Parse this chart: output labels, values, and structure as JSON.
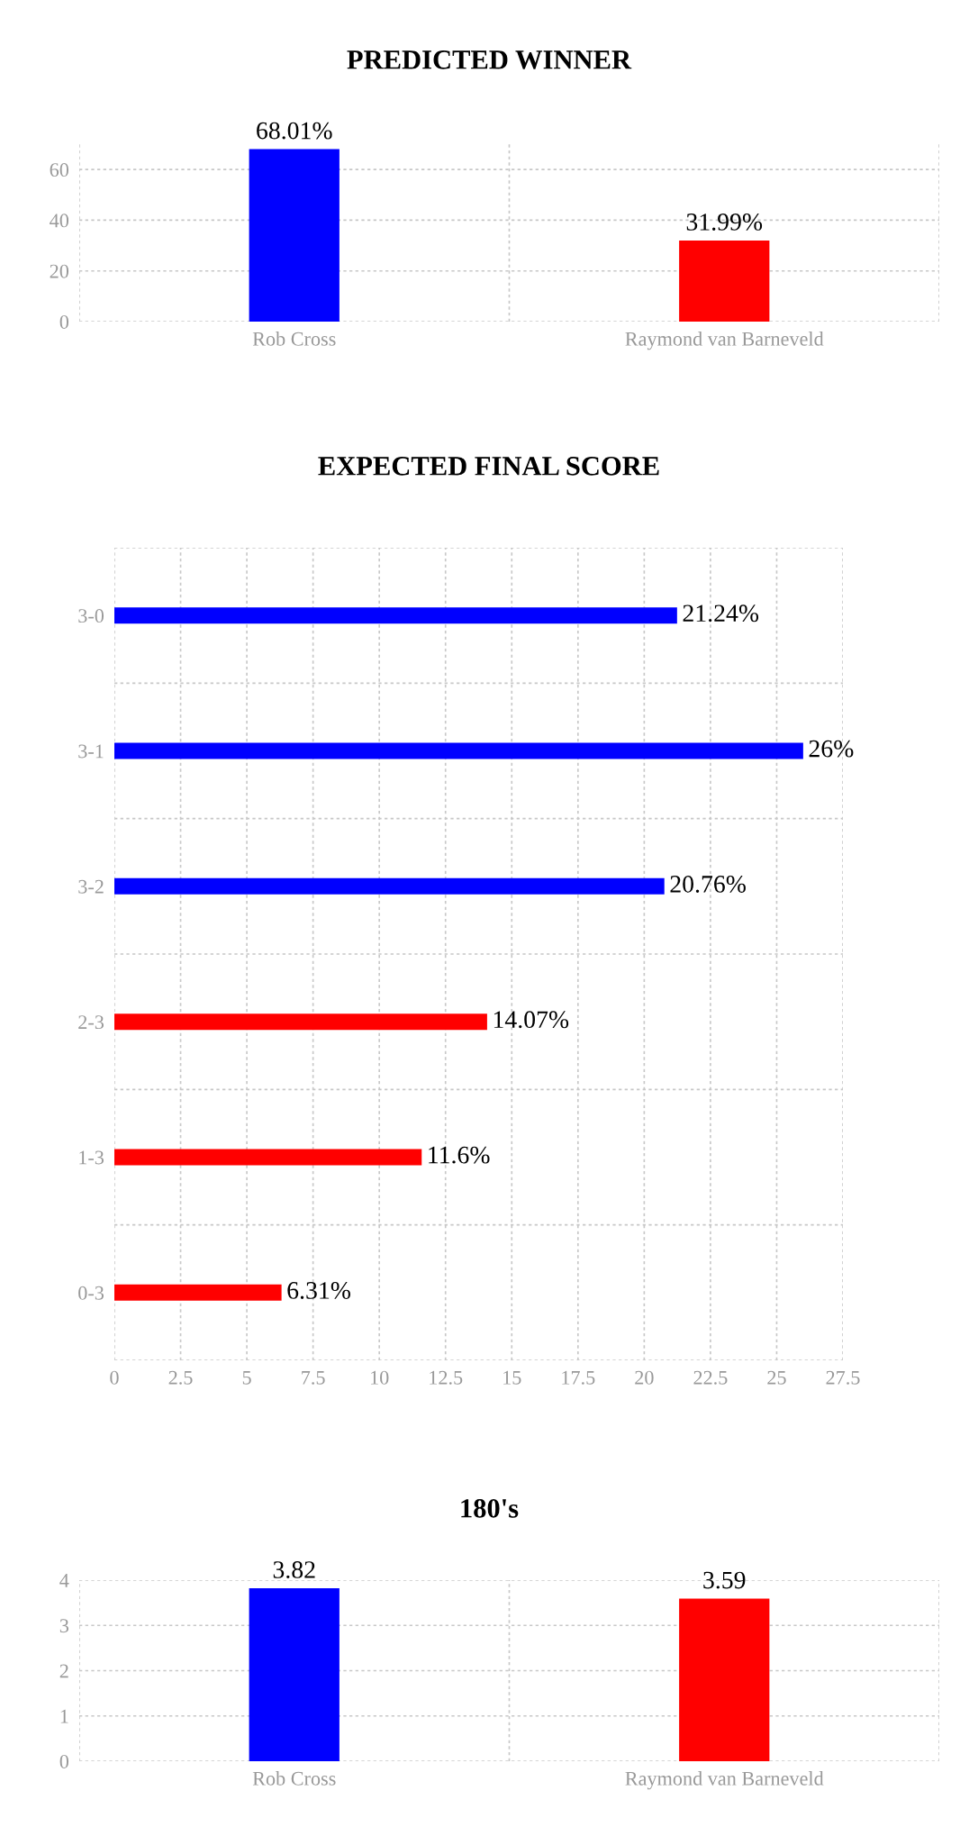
{
  "chart_data": [
    {
      "type": "bar",
      "title": "PREDICTED WINNER",
      "categories": [
        "Rob Cross",
        "Raymond van Barneveld"
      ],
      "values": [
        68.01,
        31.99
      ],
      "colors": [
        "#0000ff",
        "#ff0000"
      ],
      "value_labels": [
        "68.01%",
        "31.99%"
      ],
      "ylim": [
        0,
        70
      ],
      "yticks": [
        0,
        20,
        40,
        60
      ],
      "grid": true
    },
    {
      "type": "bar",
      "title": "EXPECTED FINAL SCORE",
      "orientation": "horizontal",
      "categories": [
        "3-0",
        "3-1",
        "3-2",
        "2-3",
        "1-3",
        "0-3"
      ],
      "values": [
        21.24,
        26,
        20.76,
        14.07,
        11.6,
        6.31
      ],
      "colors": [
        "#0000ff",
        "#0000ff",
        "#0000ff",
        "#ff0000",
        "#ff0000",
        "#ff0000"
      ],
      "value_labels": [
        "21.24%",
        "26%",
        "20.76%",
        "14.07%",
        "11.6%",
        "6.31%"
      ],
      "xlim": [
        0,
        27.5
      ],
      "xticks": [
        0,
        2.5,
        5,
        7.5,
        10,
        12.5,
        15,
        17.5,
        20,
        22.5,
        25,
        27.5
      ],
      "grid": true
    },
    {
      "type": "bar",
      "title": "180's",
      "categories": [
        "Rob Cross",
        "Raymond van Barneveld"
      ],
      "values": [
        3.82,
        3.59
      ],
      "colors": [
        "#0000ff",
        "#ff0000"
      ],
      "data_labels": true,
      "ylim": [
        0,
        4
      ],
      "yticks": [
        0,
        1,
        2,
        3,
        4
      ],
      "grid": true
    }
  ]
}
